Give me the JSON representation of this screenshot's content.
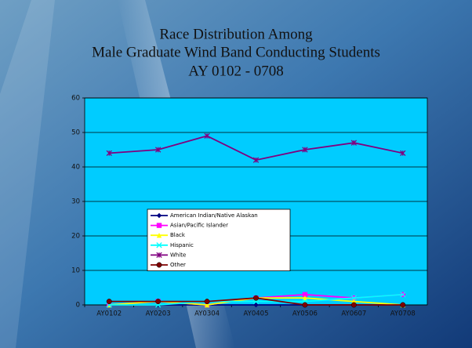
{
  "chart_data": {
    "type": "line",
    "title": [
      "Race Distribution Among",
      "Male Graduate Wind Band Conducting Students",
      "AY 0102 - 0708"
    ],
    "categories": [
      "AY0102",
      "AY0203",
      "AY0304",
      "AY0405",
      "AY0506",
      "AY0607",
      "AY0708"
    ],
    "series": [
      {
        "name": "American Indian/Native Alaskan",
        "color": "#000080",
        "marker": "diamond",
        "values": [
          0,
          0,
          0,
          0,
          0,
          0,
          0
        ]
      },
      {
        "name": "Asian/Pacific Islander",
        "color": "#ff00ff",
        "marker": "square",
        "values": [
          0,
          1,
          0,
          2,
          3,
          2,
          3
        ]
      },
      {
        "name": "Black",
        "color": "#ffff00",
        "marker": "triangle",
        "values": [
          0,
          1,
          0,
          2,
          2,
          1,
          0
        ]
      },
      {
        "name": "Hispanic",
        "color": "#00ffff",
        "marker": "x",
        "values": [
          0,
          0,
          1,
          1,
          1,
          2,
          3
        ]
      },
      {
        "name": "White",
        "color": "#800080",
        "marker": "star",
        "values": [
          44,
          45,
          49,
          42,
          45,
          47,
          44
        ]
      },
      {
        "name": "Other",
        "color": "#800000",
        "marker": "circle",
        "values": [
          1,
          1,
          1,
          2,
          0,
          0,
          0
        ]
      }
    ],
    "ylim": [
      0,
      60
    ],
    "yticks": [
      0,
      10,
      20,
      30,
      40,
      50,
      60
    ],
    "grid": true,
    "plot_color": "#00ccff"
  }
}
